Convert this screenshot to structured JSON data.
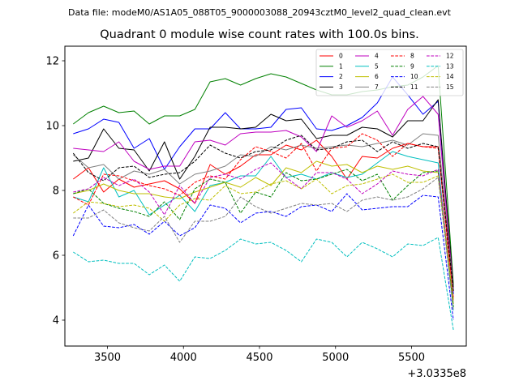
{
  "header": "Data file: modeM0/AS1A05_088T05_9000003088_20943cztM0_level2_quad_clean.evt",
  "chart_data": {
    "type": "line",
    "title": "Quadrant 0 module wise count rates with 100.0s bins.",
    "xlabel": "",
    "ylabel": "",
    "x_offset_label": "+3.0335e8",
    "x_ticks": [
      3500,
      4000,
      4500,
      5000,
      5500
    ],
    "y_ticks": [
      4,
      6,
      8,
      10,
      12
    ],
    "xlim": [
      3220,
      5860
    ],
    "ylim": [
      3.2,
      12.45
    ],
    "grid": false,
    "legend_position": "top-right",
    "x": [
      3275,
      3375,
      3475,
      3575,
      3675,
      3775,
      3875,
      3975,
      4075,
      4175,
      4275,
      4375,
      4475,
      4575,
      4675,
      4775,
      4875,
      4975,
      5075,
      5175,
      5275,
      5375,
      5475,
      5575,
      5675,
      5775
    ],
    "series": [
      {
        "name": "0",
        "color": "#ff0000",
        "dash": "solid",
        "values": [
          8.35,
          8.7,
          7.95,
          8.35,
          8.1,
          8.2,
          8.3,
          8.05,
          7.6,
          8.8,
          8.5,
          8.75,
          9.1,
          9.1,
          9.4,
          9.25,
          9.55,
          9.05,
          8.35,
          9.05,
          9.0,
          9.3,
          9.45,
          9.35,
          9.35,
          4.7
        ]
      },
      {
        "name": "1",
        "color": "#008000",
        "dash": "solid",
        "values": [
          10.05,
          10.4,
          10.6,
          10.4,
          10.45,
          10.05,
          10.3,
          10.3,
          10.5,
          11.35,
          11.45,
          11.25,
          11.45,
          11.6,
          11.5,
          11.3,
          11.1,
          10.95,
          10.95,
          11.05,
          11.1,
          11.2,
          11.25,
          11.5,
          11.85,
          5.1
        ]
      },
      {
        "name": "2",
        "color": "#0000ff",
        "dash": "solid",
        "values": [
          9.75,
          9.9,
          10.2,
          10.1,
          9.3,
          9.6,
          8.65,
          9.35,
          9.9,
          9.9,
          10.4,
          9.9,
          9.9,
          9.95,
          10.5,
          10.55,
          9.9,
          9.85,
          10.0,
          10.25,
          10.7,
          11.5,
          10.95,
          10.35,
          10.75,
          4.8
        ]
      },
      {
        "name": "3",
        "color": "#000000",
        "dash": "solid",
        "values": [
          8.9,
          9.0,
          9.9,
          9.3,
          9.25,
          8.6,
          9.5,
          8.35,
          9.05,
          9.95,
          9.95,
          9.9,
          9.95,
          10.35,
          10.15,
          10.2,
          9.6,
          9.7,
          9.7,
          9.95,
          9.9,
          9.65,
          10.15,
          10.15,
          10.8,
          5.0
        ]
      },
      {
        "name": "4",
        "color": "#bf00bf",
        "dash": "solid",
        "values": [
          9.3,
          9.25,
          9.2,
          9.5,
          8.9,
          8.65,
          8.75,
          8.75,
          9.5,
          9.55,
          9.4,
          9.75,
          9.8,
          9.8,
          9.85,
          9.65,
          9.2,
          10.3,
          9.95,
          10.15,
          10.45,
          9.7,
          10.5,
          10.9,
          10.35,
          4.9
        ]
      },
      {
        "name": "5",
        "color": "#00bfbf",
        "dash": "solid",
        "values": [
          7.8,
          7.65,
          8.7,
          7.8,
          8.0,
          7.25,
          7.55,
          7.85,
          7.35,
          8.15,
          8.25,
          8.45,
          8.45,
          9.05,
          8.4,
          8.5,
          8.35,
          8.55,
          8.4,
          8.5,
          8.85,
          9.2,
          9.05,
          8.95,
          8.85,
          4.3
        ]
      },
      {
        "name": "6",
        "color": "#bfbf00",
        "dash": "solid",
        "values": [
          7.9,
          8.0,
          8.2,
          8.0,
          7.9,
          7.9,
          7.8,
          7.75,
          7.95,
          8.1,
          8.25,
          8.1,
          8.4,
          8.15,
          8.7,
          8.55,
          8.9,
          8.75,
          8.8,
          8.55,
          8.75,
          8.65,
          8.75,
          8.6,
          8.55,
          4.5
        ]
      },
      {
        "name": "7",
        "color": "#808080",
        "dash": "solid",
        "values": [
          9.1,
          8.7,
          8.8,
          8.35,
          8.6,
          8.5,
          8.65,
          8.2,
          8.5,
          8.6,
          8.75,
          9.1,
          9.05,
          9.35,
          9.25,
          9.4,
          9.3,
          9.35,
          9.4,
          9.35,
          9.45,
          9.55,
          9.4,
          9.75,
          9.7,
          4.9
        ]
      },
      {
        "name": "8",
        "color": "#ff0000",
        "dash": "dashed",
        "values": [
          7.8,
          7.55,
          8.5,
          8.45,
          8.3,
          8.15,
          8.05,
          7.85,
          8.25,
          8.45,
          8.35,
          8.95,
          9.35,
          9.2,
          9.0,
          9.45,
          8.6,
          9.3,
          9.35,
          9.75,
          9.55,
          9.05,
          9.45,
          9.35,
          9.3,
          4.6
        ]
      },
      {
        "name": "9",
        "color": "#008000",
        "dash": "dashed",
        "values": [
          7.9,
          8.05,
          7.6,
          7.45,
          7.35,
          7.2,
          7.65,
          7.1,
          8.05,
          8.35,
          8.25,
          7.3,
          7.95,
          7.8,
          8.55,
          8.3,
          8.35,
          8.5,
          8.65,
          8.3,
          8.5,
          7.7,
          8.15,
          8.55,
          8.6,
          4.4
        ]
      },
      {
        "name": "10",
        "color": "#0000ff",
        "dash": "dashed",
        "values": [
          6.6,
          7.55,
          6.9,
          6.85,
          6.95,
          6.65,
          7.05,
          6.6,
          6.85,
          7.55,
          7.45,
          7.0,
          7.3,
          7.35,
          7.2,
          7.5,
          7.55,
          7.35,
          7.9,
          7.4,
          7.45,
          7.5,
          7.5,
          7.85,
          7.8,
          4.0
        ]
      },
      {
        "name": "11",
        "color": "#000000",
        "dash": "dashed",
        "values": [
          9.15,
          8.55,
          8.3,
          8.7,
          8.75,
          8.4,
          8.5,
          8.55,
          8.9,
          9.4,
          9.15,
          9.0,
          9.2,
          9.25,
          9.55,
          9.7,
          9.25,
          9.3,
          9.5,
          9.55,
          9.2,
          9.5,
          9.3,
          9.45,
          9.35,
          4.9
        ]
      },
      {
        "name": "12",
        "color": "#bf00bf",
        "dash": "dashed",
        "values": [
          7.95,
          8.05,
          8.4,
          8.15,
          8.35,
          7.95,
          7.25,
          8.15,
          7.6,
          8.4,
          8.5,
          8.35,
          8.65,
          8.85,
          8.4,
          8.05,
          8.55,
          8.55,
          8.35,
          7.9,
          8.2,
          8.6,
          8.5,
          8.45,
          8.65,
          4.6
        ]
      },
      {
        "name": "13",
        "color": "#00bfbf",
        "dash": "dashed",
        "values": [
          6.1,
          5.8,
          5.85,
          5.75,
          5.75,
          5.4,
          5.7,
          5.2,
          5.95,
          5.9,
          6.15,
          6.5,
          6.35,
          6.4,
          6.15,
          5.8,
          6.5,
          6.4,
          5.95,
          6.4,
          6.2,
          5.95,
          6.35,
          6.3,
          6.55,
          3.7
        ]
      },
      {
        "name": "14",
        "color": "#bfbf00",
        "dash": "dashed",
        "values": [
          7.3,
          7.65,
          7.6,
          7.5,
          7.55,
          7.45,
          7.05,
          7.55,
          7.75,
          7.7,
          8.15,
          7.9,
          7.95,
          8.2,
          8.3,
          8.05,
          8.35,
          7.9,
          8.15,
          8.2,
          8.35,
          8.5,
          8.25,
          8.25,
          8.45,
          4.6
        ]
      },
      {
        "name": "15",
        "color": "#808080",
        "dash": "dashed",
        "values": [
          7.15,
          7.15,
          7.4,
          7.0,
          6.85,
          6.75,
          7.2,
          6.4,
          7.05,
          7.05,
          7.2,
          7.8,
          7.5,
          7.3,
          7.45,
          7.6,
          7.55,
          7.6,
          7.35,
          7.7,
          7.8,
          7.7,
          7.8,
          8.05,
          8.4,
          4.3
        ]
      }
    ]
  }
}
